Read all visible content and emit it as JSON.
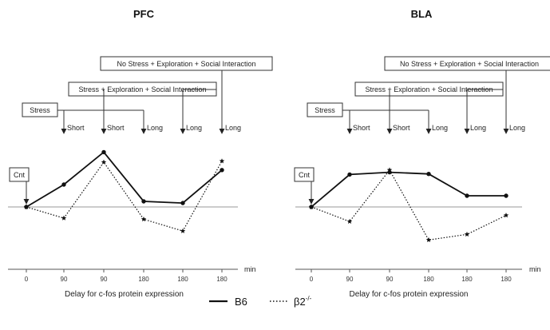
{
  "chart_data": [
    {
      "type": "line",
      "title": "PFC",
      "xlabel": "Delay for c-fos protein expression",
      "x_unit": "min",
      "categories": [
        "0",
        "90",
        "90",
        "180",
        "180",
        "180"
      ],
      "series": [
        {
          "name": "B6",
          "style": "solid",
          "values": [
            0,
            0.4,
            0.98,
            0.1,
            0.07,
            0.66
          ]
        },
        {
          "name": "β2-/-",
          "style": "dotted",
          "values": [
            0,
            -0.2,
            0.8,
            -0.22,
            -0.43,
            0.82
          ]
        }
      ],
      "ylim": [
        -0.75,
        1.15
      ],
      "annotations": {
        "control": "Cnt",
        "brackets": [
          {
            "label": "Stress",
            "arrows": [
              {
                "index": 1,
                "label": "Short"
              },
              {
                "index": 3,
                "label": "Long"
              }
            ]
          },
          {
            "label": "Stress + Exploration + Social Interaction",
            "arrows": [
              {
                "index": 2,
                "label": "Short"
              },
              {
                "index": 4,
                "label": "Long"
              }
            ]
          },
          {
            "label": "No Stress + Exploration + Social Interaction",
            "arrows": [
              {
                "index": 5,
                "label": "Long"
              }
            ]
          }
        ]
      }
    },
    {
      "type": "line",
      "title": "BLA",
      "xlabel": "Delay for c-fos protein expression",
      "x_unit": "min",
      "categories": [
        "0",
        "90",
        "90",
        "180",
        "180",
        "180"
      ],
      "series": [
        {
          "name": "B6",
          "style": "solid",
          "values": [
            0,
            0.58,
            0.62,
            0.59,
            0.2,
            0.2
          ]
        },
        {
          "name": "β2-/-",
          "style": "dotted",
          "values": [
            0,
            -0.26,
            0.66,
            -0.59,
            -0.49,
            -0.15
          ]
        }
      ],
      "ylim": [
        -0.75,
        1.15
      ],
      "annotations": {
        "control": "Cnt",
        "brackets": [
          {
            "label": "Stress",
            "arrows": [
              {
                "index": 1,
                "label": "Short"
              },
              {
                "index": 3,
                "label": "Long"
              }
            ]
          },
          {
            "label": "Stress + Exploration + Social Interaction",
            "arrows": [
              {
                "index": 2,
                "label": "Short"
              },
              {
                "index": 4,
                "label": "Long"
              }
            ]
          },
          {
            "label": "No Stress + Exploration + Social Interaction",
            "arrows": [
              {
                "index": 5,
                "label": "Long"
              }
            ]
          }
        ]
      }
    }
  ],
  "legend": {
    "position": "bottom",
    "b6": "B6",
    "ko_base": "β2",
    "ko_sup": "-/-"
  }
}
